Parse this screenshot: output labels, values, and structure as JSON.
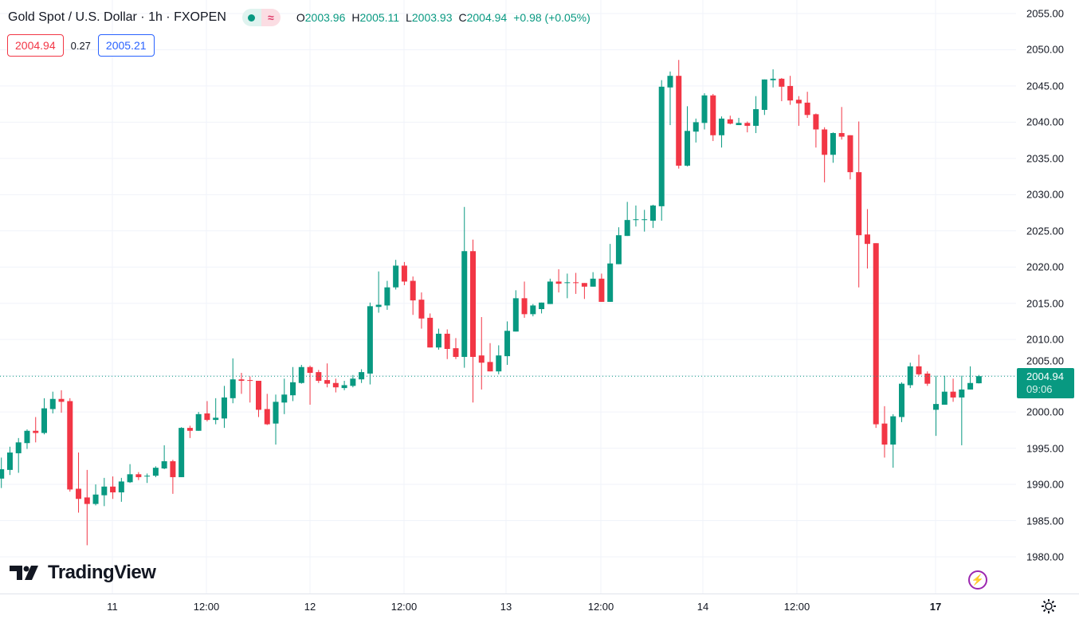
{
  "header": {
    "title": "Gold Spot / U.S. Dollar · 1h · FXOPEN",
    "status_icon": "market-open-dot",
    "compare_icon": "≈",
    "ohlc": {
      "o_label": "O",
      "o": "2003.96",
      "h_label": "H",
      "h": "2005.11",
      "l_label": "L",
      "l": "2003.93",
      "c_label": "C",
      "c": "2004.94",
      "change": "+0.98 (+0.05%)"
    },
    "sell_price": "2004.94",
    "spread": "0.27",
    "buy_price": "2005.21"
  },
  "last_price": {
    "price": "2004.94",
    "countdown": "09:06"
  },
  "brand": "TradingView",
  "colors": {
    "up": "#089981",
    "down": "#f23645",
    "grid": "#f0f3fa"
  },
  "chart_data": {
    "type": "candlestick",
    "title": "Gold Spot / U.S. Dollar · 1h · FXOPEN",
    "ylim": [
      1980,
      2055
    ],
    "y_ticks": [
      "2055.00",
      "2050.00",
      "2045.00",
      "2040.00",
      "2035.00",
      "2030.00",
      "2025.00",
      "2020.00",
      "2015.00",
      "2010.00",
      "2005.00",
      "2000.00",
      "1995.00",
      "1990.00",
      "1985.00",
      "1980.00"
    ],
    "x_ticks": [
      {
        "label": "11",
        "bold": false
      },
      {
        "label": "12:00",
        "bold": false
      },
      {
        "label": "12",
        "bold": false
      },
      {
        "label": "12:00",
        "bold": false
      },
      {
        "label": "13",
        "bold": false
      },
      {
        "label": "12:00",
        "bold": false
      },
      {
        "label": "14",
        "bold": false
      },
      {
        "label": "12:00",
        "bold": false
      },
      {
        "label": "17",
        "bold": true
      }
    ],
    "ohlc_fields": [
      "open",
      "high",
      "low",
      "close"
    ],
    "candles": [
      [
        1990.8,
        1993.7,
        1989.5,
        1992.1
      ],
      [
        1992.0,
        1995.2,
        1991.3,
        1994.4
      ],
      [
        1994.3,
        1996.4,
        1991.6,
        1995.8
      ],
      [
        1995.7,
        1997.6,
        1994.9,
        1997.4
      ],
      [
        1997.4,
        1999.3,
        1995.8,
        1997.1
      ],
      [
        1997.1,
        2001.9,
        1996.9,
        2000.5
      ],
      [
        2000.4,
        2002.8,
        1999.8,
        2001.8
      ],
      [
        2001.8,
        2003.0,
        1999.9,
        2001.4
      ],
      [
        2001.5,
        2001.9,
        1989.0,
        1989.3
      ],
      [
        1989.4,
        1994.4,
        1986.1,
        1988.0
      ],
      [
        1988.2,
        1992.0,
        1981.6,
        1987.3
      ],
      [
        1987.3,
        1990.0,
        1987.1,
        1988.6
      ],
      [
        1988.5,
        1990.9,
        1987.0,
        1989.7
      ],
      [
        1989.7,
        1991.1,
        1988.0,
        1988.9
      ],
      [
        1988.9,
        1990.9,
        1987.6,
        1990.4
      ],
      [
        1990.3,
        1992.8,
        1990.2,
        1991.4
      ],
      [
        1991.4,
        1991.7,
        1990.6,
        1991.0
      ],
      [
        1991.1,
        1991.5,
        1990.2,
        1991.2
      ],
      [
        1991.2,
        1992.5,
        1991.0,
        1992.3
      ],
      [
        1992.2,
        1995.4,
        1992.1,
        1993.2
      ],
      [
        1993.2,
        1993.4,
        1988.7,
        1991.0
      ],
      [
        1991.0,
        1997.9,
        1991.0,
        1997.8
      ],
      [
        1997.8,
        1998.1,
        1996.4,
        1997.4
      ],
      [
        1997.4,
        2000.0,
        1997.4,
        1999.7
      ],
      [
        1999.8,
        2001.5,
        1998.7,
        1998.9
      ],
      [
        1998.9,
        2001.9,
        1998.3,
        1999.2
      ],
      [
        1999.1,
        2003.6,
        1997.8,
        2002.0
      ],
      [
        2001.9,
        2007.4,
        2001.2,
        2004.5
      ],
      [
        2004.5,
        2005.4,
        2002.5,
        2004.3
      ],
      [
        2004.4,
        2004.9,
        2001.3,
        2004.3
      ],
      [
        2004.3,
        2004.3,
        1999.3,
        2000.3
      ],
      [
        2000.4,
        2002.5,
        1998.2,
        1998.3
      ],
      [
        1998.4,
        2002.4,
        1995.5,
        2001.4
      ],
      [
        2001.3,
        2004.6,
        1999.7,
        2002.4
      ],
      [
        2002.3,
        2006.2,
        2001.5,
        2004.1
      ],
      [
        2004.0,
        2006.5,
        2003.9,
        2006.2
      ],
      [
        2006.2,
        2006.4,
        2001.0,
        2005.4
      ],
      [
        2005.5,
        2005.8,
        2004.0,
        2004.3
      ],
      [
        2004.4,
        2006.7,
        2003.4,
        2003.9
      ],
      [
        2004.0,
        2004.6,
        2002.7,
        2003.4
      ],
      [
        2003.3,
        2004.3,
        2003.0,
        2003.7
      ],
      [
        2003.6,
        2005.1,
        2003.4,
        2004.6
      ],
      [
        2004.5,
        2005.9,
        2004.0,
        2005.5
      ],
      [
        2005.3,
        2015.1,
        2003.8,
        2014.6
      ],
      [
        2014.5,
        2019.4,
        2013.7,
        2014.8
      ],
      [
        2014.7,
        2018.1,
        2014.1,
        2017.2
      ],
      [
        2017.2,
        2021.0,
        2016.9,
        2020.2
      ],
      [
        2020.2,
        2020.7,
        2017.5,
        2018.0
      ],
      [
        2018.1,
        2018.7,
        2013.4,
        2015.4
      ],
      [
        2015.5,
        2016.5,
        2011.5,
        2012.9
      ],
      [
        2013.0,
        2013.6,
        2008.9,
        2008.9
      ],
      [
        2008.9,
        2011.5,
        2008.6,
        2010.8
      ],
      [
        2010.8,
        2011.4,
        2007.3,
        2008.7
      ],
      [
        2008.8,
        2010.2,
        2007.3,
        2007.6
      ],
      [
        2007.6,
        2028.3,
        2006.1,
        2022.2
      ],
      [
        2022.2,
        2023.8,
        2001.3,
        2007.6
      ],
      [
        2007.8,
        2013.1,
        2003.1,
        2006.8
      ],
      [
        2006.9,
        2009.5,
        2005.6,
        2005.6
      ],
      [
        2005.6,
        2009.2,
        2005.2,
        2007.8
      ],
      [
        2007.7,
        2012.5,
        2006.5,
        2011.2
      ],
      [
        2011.1,
        2016.8,
        2011.1,
        2015.7
      ],
      [
        2015.7,
        2018.0,
        2013.0,
        2013.5
      ],
      [
        2013.5,
        2014.9,
        2013.2,
        2014.7
      ],
      [
        2014.2,
        2015.1,
        2013.6,
        2015.1
      ],
      [
        2014.9,
        2018.4,
        2014.9,
        2018.0
      ],
      [
        2018.0,
        2019.7,
        2016.5,
        2017.7
      ],
      [
        2017.8,
        2019.1,
        2015.7,
        2017.9
      ],
      [
        2017.9,
        2019.2,
        2016.3,
        2017.8
      ],
      [
        2017.8,
        2017.8,
        2015.6,
        2017.3
      ],
      [
        2017.3,
        2019.3,
        2017.3,
        2018.4
      ],
      [
        2018.4,
        2019.1,
        2015.2,
        2015.2
      ],
      [
        2015.2,
        2023.2,
        2015.2,
        2020.5
      ],
      [
        2020.4,
        2025.5,
        2020.4,
        2024.4
      ],
      [
        2024.3,
        2029.0,
        2024.3,
        2026.5
      ],
      [
        2026.5,
        2028.5,
        2025.6,
        2026.6
      ],
      [
        2026.5,
        2027.9,
        2024.9,
        2026.6
      ],
      [
        2026.4,
        2028.6,
        2025.4,
        2028.5
      ],
      [
        2028.4,
        2045.8,
        2026.4,
        2044.9
      ],
      [
        2044.8,
        2047.0,
        2039.6,
        2046.4
      ],
      [
        2046.4,
        2048.6,
        2033.6,
        2034.0
      ],
      [
        2034.0,
        2042.2,
        2033.9,
        2038.8
      ],
      [
        2038.7,
        2040.5,
        2037.2,
        2040.0
      ],
      [
        2039.9,
        2044.0,
        2039.0,
        2043.7
      ],
      [
        2043.7,
        2043.9,
        2037.4,
        2038.2
      ],
      [
        2038.2,
        2040.8,
        2036.5,
        2040.5
      ],
      [
        2040.4,
        2040.9,
        2039.7,
        2039.8
      ],
      [
        2039.6,
        2040.6,
        2039.6,
        2039.9
      ],
      [
        2039.9,
        2040.1,
        2038.6,
        2039.5
      ],
      [
        2039.5,
        2043.6,
        2038.5,
        2041.8
      ],
      [
        2041.7,
        2045.9,
        2041.0,
        2045.9
      ],
      [
        2045.8,
        2047.3,
        2044.8,
        2046.0
      ],
      [
        2046.0,
        2046.1,
        2042.9,
        2044.9
      ],
      [
        2045.0,
        2046.4,
        2042.4,
        2043.0
      ],
      [
        2043.1,
        2043.6,
        2039.5,
        2042.6
      ],
      [
        2042.7,
        2044.2,
        2040.6,
        2041.0
      ],
      [
        2041.1,
        2041.2,
        2036.5,
        2039.0
      ],
      [
        2039.0,
        2039.3,
        2031.7,
        2035.5
      ],
      [
        2035.5,
        2038.6,
        2034.4,
        2038.5
      ],
      [
        2038.5,
        2042.1,
        2037.6,
        2038.0
      ],
      [
        2038.2,
        2038.2,
        2032.1,
        2033.1
      ],
      [
        2033.1,
        2040.1,
        2017.2,
        2024.4
      ],
      [
        2024.5,
        2028.0,
        2019.8,
        2023.2
      ],
      [
        2023.3,
        2023.3,
        1997.8,
        1998.3
      ],
      [
        1998.4,
        2000.8,
        1993.7,
        1995.5
      ],
      [
        1995.5,
        1999.7,
        1992.3,
        1999.4
      ],
      [
        1999.3,
        2004.1,
        1998.6,
        2003.9
      ],
      [
        2003.7,
        2006.8,
        2003.3,
        2006.3
      ],
      [
        2006.3,
        2007.9,
        2005.0,
        2005.2
      ],
      [
        2005.3,
        2005.6,
        2003.6,
        2003.9
      ],
      [
        2000.3,
        2005.0,
        1996.7,
        2001.1
      ],
      [
        2001.0,
        2005.0,
        2001.0,
        2002.8
      ],
      [
        2002.8,
        2004.6,
        2001.4,
        2002.0
      ],
      [
        2002.0,
        2005.0,
        1995.4,
        2003.1
      ],
      [
        2003.1,
        2006.3,
        2003.1,
        2004.0
      ],
      [
        2003.96,
        2005.11,
        2003.93,
        2004.94
      ]
    ],
    "last_price": 2004.94,
    "grid": true
  }
}
